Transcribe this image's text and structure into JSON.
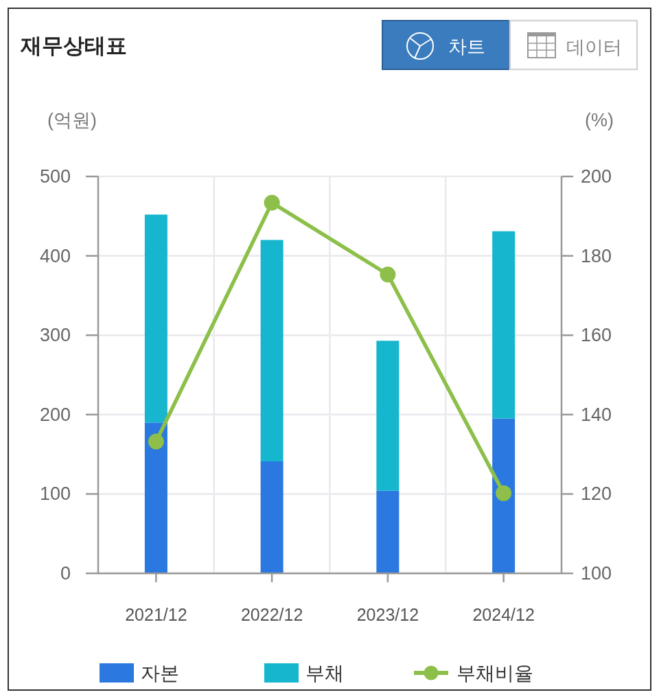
{
  "chart_data": {
    "type": "bar",
    "title": "재무상태표",
    "ylabel": "(억원)",
    "y2label": "(%)",
    "categories": [
      "2021/12",
      "2022/12",
      "2023/12",
      "2024/12"
    ],
    "series": [
      {
        "name": "자본",
        "color": "#2a78e0",
        "values": [
          190,
          141,
          104,
          195
        ]
      },
      {
        "name": "부채",
        "color": "#16b6cf",
        "values": [
          262,
          279,
          189,
          236
        ]
      },
      {
        "name": "부채비율",
        "type": "line",
        "axis": "y2",
        "color": "#8dbf4a",
        "values": [
          133.2,
          193.4,
          175.3,
          120.2
        ]
      }
    ],
    "stacked": true,
    "ylim": [
      0,
      500
    ],
    "yticks": [
      0,
      100,
      200,
      300,
      400,
      500
    ],
    "y2lim": [
      100,
      200
    ],
    "y2ticks": [
      100,
      120,
      140,
      160,
      180,
      200
    ],
    "grid": true,
    "legend": "bottom",
    "marker": "circle",
    "line_style": "solid",
    "annotations": [
      "차트",
      "데이터"
    ]
  }
}
